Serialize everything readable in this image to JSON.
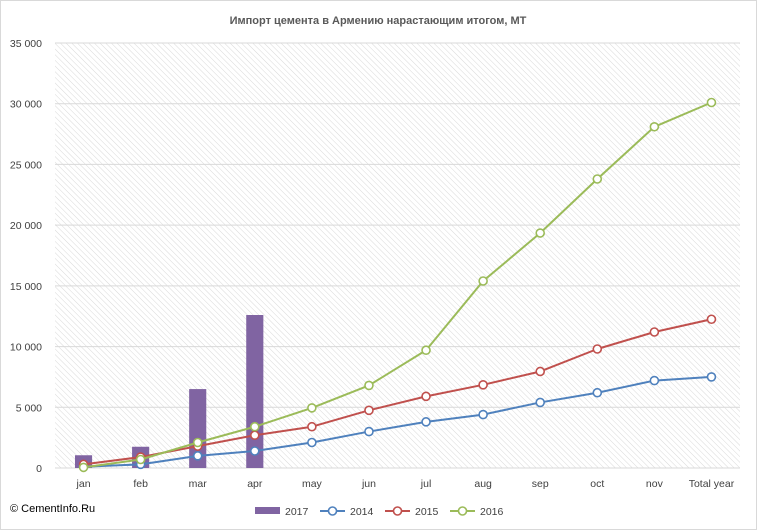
{
  "chart_data": {
    "type": "line",
    "title": "Импорт цемента в Армению нарастающим  итогом, МТ",
    "categories": [
      "jan",
      "feb",
      "mar",
      "apr",
      "may",
      "jun",
      "jul",
      "aug",
      "sep",
      "oct",
      "nov",
      "Total year"
    ],
    "ylim": [
      0,
      35000
    ],
    "yticks": [
      0,
      5000,
      10000,
      15000,
      20000,
      25000,
      30000,
      35000
    ],
    "ytick_labels": [
      "0",
      "5 000",
      "10 000",
      "15 000",
      "20 000",
      "25 000",
      "30 000",
      "35 000"
    ],
    "grid": "horizontal",
    "legend_position": "bottom",
    "series": [
      {
        "name": "2017",
        "type": "bar",
        "color": "#8064a2",
        "values": [
          1050,
          1750,
          6500,
          12600,
          null,
          null,
          null,
          null,
          null,
          null,
          null,
          null
        ]
      },
      {
        "name": "2014",
        "type": "line",
        "color": "#4f81bd",
        "values": [
          100,
          300,
          1000,
          1400,
          2100,
          3000,
          3800,
          4400,
          5400,
          6200,
          7200,
          7500
        ]
      },
      {
        "name": "2015",
        "type": "line",
        "color": "#c0504d",
        "values": [
          300,
          900,
          1800,
          2700,
          3400,
          4750,
          5900,
          6850,
          7950,
          9800,
          11200,
          12250
        ]
      },
      {
        "name": "2016",
        "type": "line",
        "color": "#9bbb59",
        "values": [
          50,
          700,
          2100,
          3400,
          4950,
          6800,
          9700,
          15400,
          19350,
          23800,
          28100,
          30100
        ]
      }
    ]
  },
  "credit": "© CementInfo.Ru"
}
